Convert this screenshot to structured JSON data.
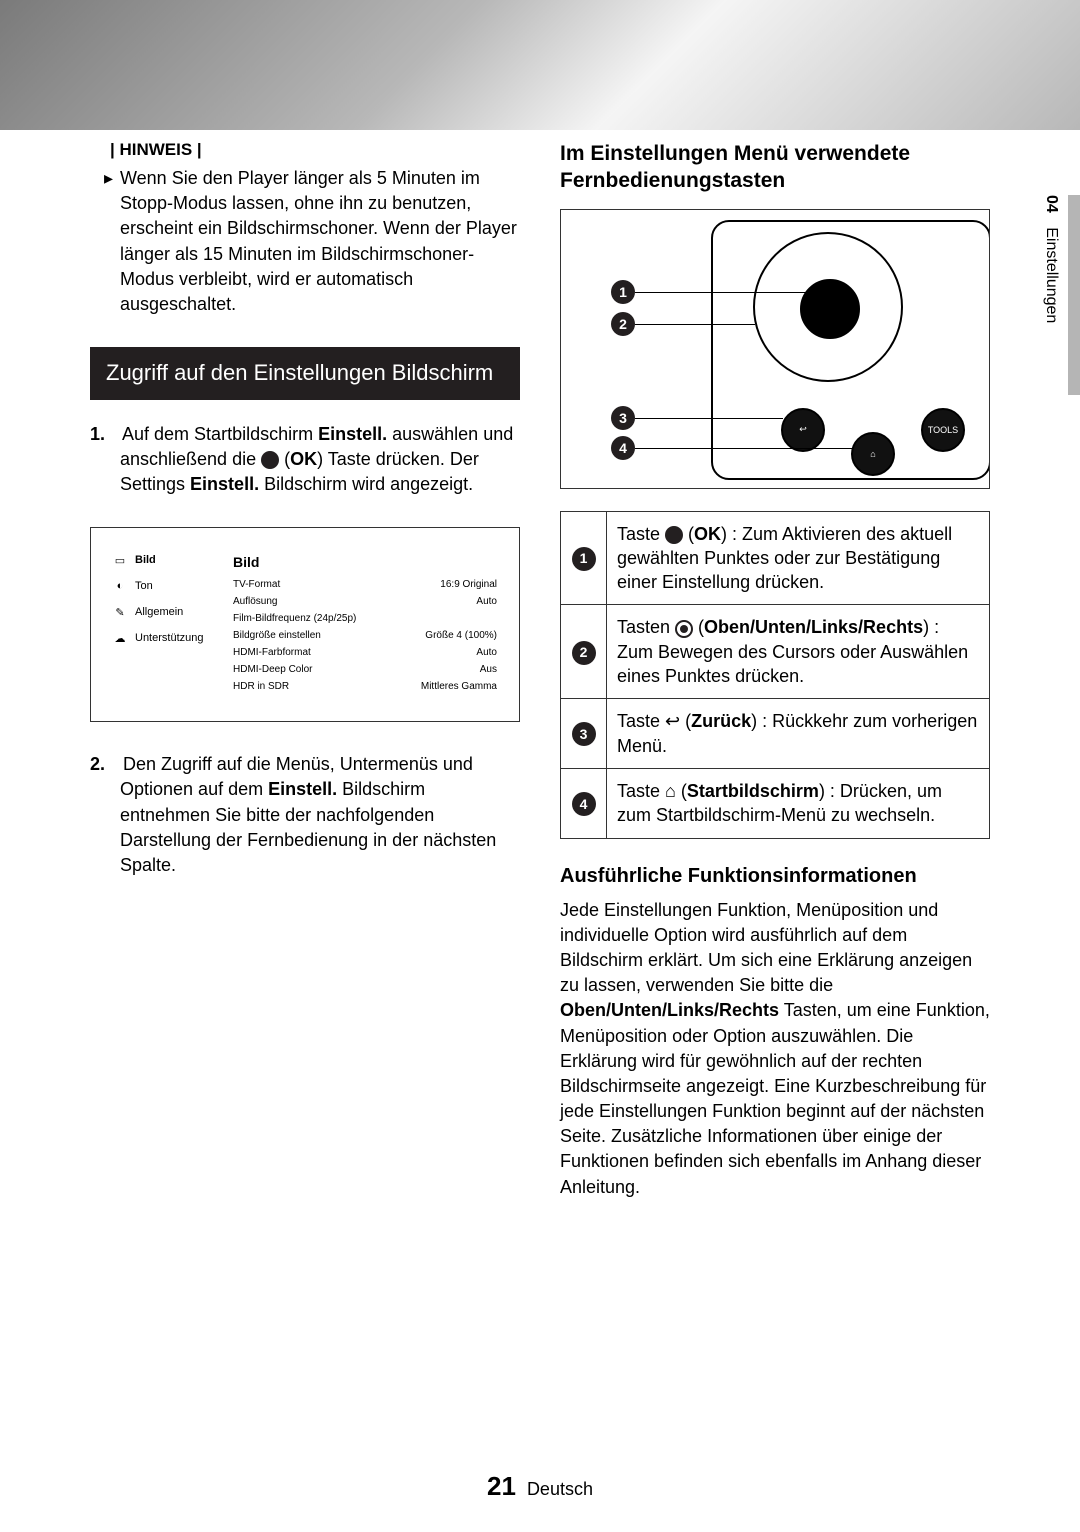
{
  "page": {
    "number": "21",
    "language": "Deutsch",
    "side_tab_chapter": "04",
    "side_tab_label": "Einstellungen"
  },
  "left": {
    "hinweis_label": "| HINWEIS |",
    "hinweis_body": "Wenn Sie den Player länger als 5 Minuten im Stopp-Modus lassen, ohne ihn zu benutzen, erscheint ein Bildschirmschoner. Wenn der Player länger als 15 Minuten im Bildschirmschoner-Modus verbleibt, wird er automatisch ausgeschaltet.",
    "section_title": "Zugriff auf den Einstellungen Bildschirm",
    "step1_num": "1.",
    "step1_a": "Auf dem Startbildschirm ",
    "step1_b": "Einstell.",
    "step1_c": " auswählen und anschließend die ",
    "step1_ok": "OK",
    "step1_d": ") Taste drücken. Der Settings ",
    "step1_e": "Einstell.",
    "step1_f": " Bildschirm wird angezeigt.",
    "step2_num": "2.",
    "step2_a": "Den Zugriff auf die Menüs, Untermenüs und Optionen auf dem ",
    "step2_b": "Einstell.",
    "step2_c": " Bildschirm entnehmen Sie bitte der nachfolgenden Darstellung der Fernbedienung in der nächsten Spalte.",
    "settings": {
      "sidebar": [
        {
          "icon": "▭",
          "label": "Bild"
        },
        {
          "icon": "◐",
          "label": "Ton"
        },
        {
          "icon": "✎",
          "label": "Allgemein"
        },
        {
          "icon": "☁",
          "label": "Unterstützung"
        }
      ],
      "panel_title": "Bild",
      "rows": [
        {
          "k": "TV-Format",
          "v": "16:9 Original"
        },
        {
          "k": "Auflösung",
          "v": "Auto"
        },
        {
          "k": "Film-Bildfrequenz (24p/25p)",
          "v": ""
        },
        {
          "k": "Bildgröße einstellen",
          "v": "Größe 4 (100%)"
        },
        {
          "k": "HDMI-Farbformat",
          "v": "Auto"
        },
        {
          "k": "HDMI-Deep Color",
          "v": "Aus"
        },
        {
          "k": "HDR in SDR",
          "v": "Mittleres Gamma"
        }
      ]
    }
  },
  "right": {
    "heading": "Im Einstellungen Menü verwendete Fernbedienungstasten",
    "remote": {
      "callouts": [
        "1",
        "2",
        "3",
        "4"
      ],
      "tools_label": "TOOLS",
      "back_glyph": "↩",
      "home_glyph": "⌂"
    },
    "table": [
      {
        "n": "1",
        "pre": "Taste ",
        "bold": "OK",
        "post": ") : Zum Aktivieren des aktuell gewählten Punktes oder zur Bestätigung einer Einstellung drücken.",
        "icon": "dot"
      },
      {
        "n": "2",
        "pre": "Tasten ",
        "bold": "Oben/Unten/Links/Rechts",
        "post": ") : Zum Bewegen des Cursors oder Auswählen eines Punktes drücken.",
        "icon": "ring"
      },
      {
        "n": "3",
        "pre": "Taste ",
        "bold": "Zurück",
        "glyph": "↩",
        "post": ") : Rückkehr zum vorherigen Menü.",
        "icon": "glyph"
      },
      {
        "n": "4",
        "pre": "Taste ",
        "bold": "Startbildschirm",
        "glyph": "⌂",
        "post": ") : Drücken, um zum Startbildschirm-Menü zu wechseln.",
        "icon": "glyph"
      }
    ],
    "subhead": "Ausführliche Funktionsinformationen",
    "para_a": "Jede Einstellungen Funktion, Menüposition und individuelle Option wird ausführlich auf dem Bildschirm erklärt. Um sich eine Erklärung anzeigen zu lassen, verwenden Sie bitte die ",
    "para_bold": "Oben/Unten/Links/Rechts",
    "para_b": " Tasten, um eine Funktion, Menüposition oder Option auszuwählen. Die Erklärung wird für gewöhnlich auf der rechten Bildschirmseite angezeigt. Eine Kurzbeschreibung für jede Einstellungen Funktion beginnt auf der nächsten Seite. Zusätzliche Informationen über einige der Funktionen befinden sich ebenfalls im Anhang dieser Anleitung."
  }
}
